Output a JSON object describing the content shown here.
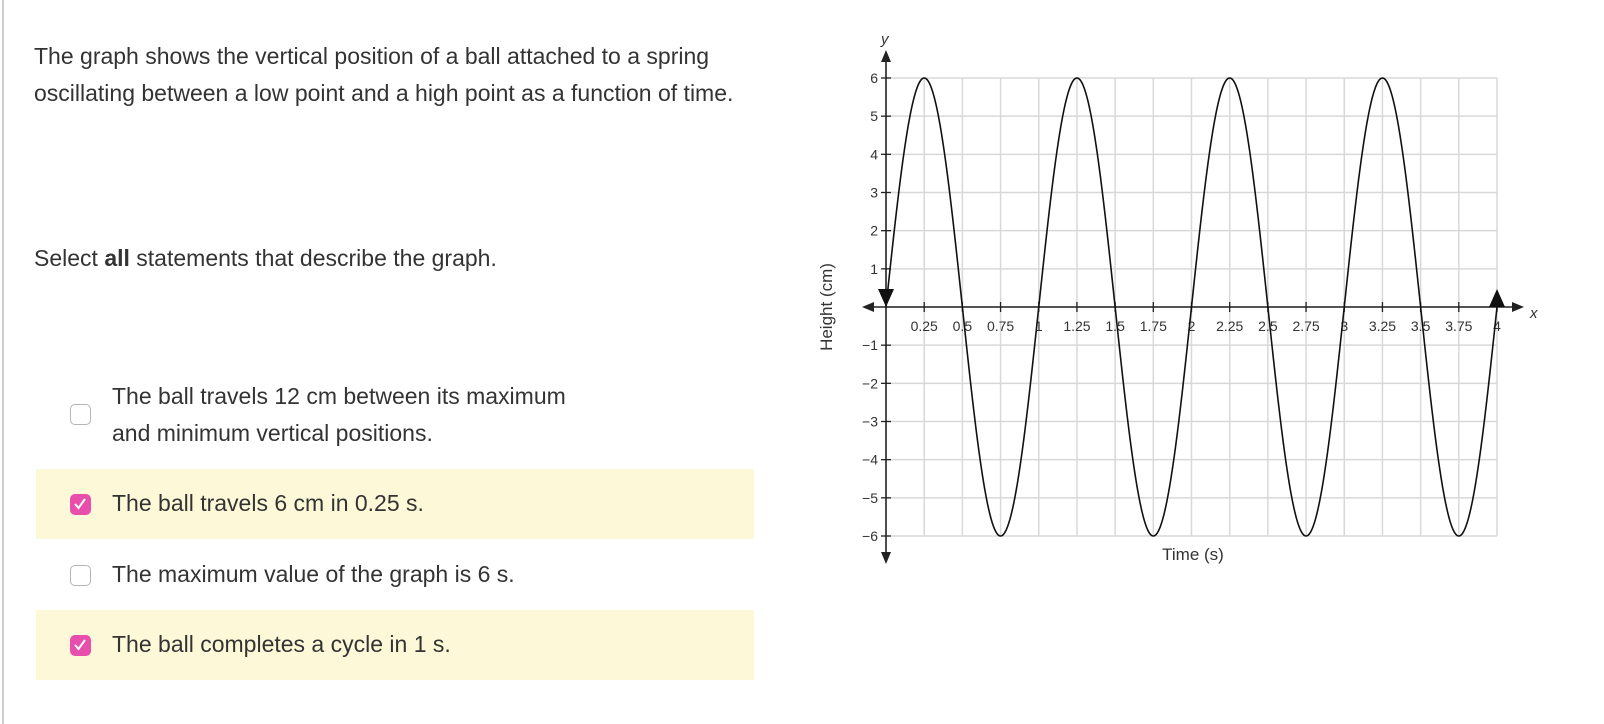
{
  "question": {
    "prompt": "The graph shows the vertical position of a ball attached to a spring oscillating between a low point and a high point as a function of time.",
    "instruction_prefix": "Select ",
    "instruction_bold": "all",
    "instruction_suffix": " statements that describe the graph."
  },
  "options": [
    {
      "line1": "The ball travels 12 cm between its maximum",
      "line2": "and minimum vertical positions.",
      "checked": false
    },
    {
      "line1": "The ball travels 6 cm in 0.25 s.",
      "checked": true
    },
    {
      "line1": "The maximum value of the graph is 6 s.",
      "checked": false
    },
    {
      "line1": "The ball completes a cycle in 1 s.",
      "checked": true
    }
  ],
  "colors": {
    "checkbox_checked": "#e84fad",
    "selected_bg": "#fcf8d8"
  },
  "chart_data": {
    "type": "line",
    "xlabel": "Time (s)",
    "ylabel": "Height (cm)",
    "x_axis_letter": "x",
    "y_axis_letter": "y",
    "xlim": [
      0,
      4
    ],
    "ylim": [
      -6,
      6
    ],
    "x_ticks": [
      "0.25",
      "0.5",
      "0.75",
      "1",
      "1.25",
      "1.5",
      "1.75",
      "2",
      "2.25",
      "2.5",
      "2.75",
      "3",
      "3.25",
      "3.5",
      "3.75",
      "4"
    ],
    "y_ticks": [
      "6",
      "5",
      "4",
      "3",
      "2",
      "1",
      "−1",
      "−2",
      "−3",
      "−4",
      "−5",
      "−6"
    ],
    "function": "y = 6 sin(2πx)",
    "amplitude": 6,
    "period": 1,
    "grid": true
  }
}
